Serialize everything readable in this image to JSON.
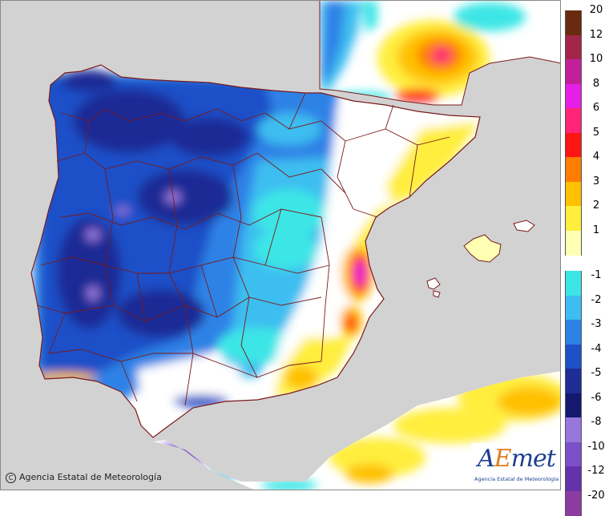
{
  "legend": {
    "levels": [
      {
        "label": "20",
        "color": "#6a2a10"
      },
      {
        "label": "12",
        "color": "#a3264a"
      },
      {
        "label": "10",
        "color": "#c2209a"
      },
      {
        "label": "8",
        "color": "#e61ee6"
      },
      {
        "label": "6",
        "color": "#ff2478"
      },
      {
        "label": "5",
        "color": "#ff1414"
      },
      {
        "label": "4",
        "color": "#ff7d00"
      },
      {
        "label": "3",
        "color": "#ffc000"
      },
      {
        "label": "2",
        "color": "#ffee3c"
      },
      {
        "label": "1",
        "color": "#ffffb4"
      },
      {
        "label": "-1",
        "color": "#3ce6e6"
      },
      {
        "label": "-2",
        "color": "#3cbef0"
      },
      {
        "label": "-3",
        "color": "#2d82e6"
      },
      {
        "label": "-4",
        "color": "#1e50c8"
      },
      {
        "label": "-5",
        "color": "#1e2c96"
      },
      {
        "label": "-6",
        "color": "#14186e"
      },
      {
        "label": "-8",
        "color": "#9678dc"
      },
      {
        "label": "-10",
        "color": "#7c50c8"
      },
      {
        "label": "-12",
        "color": "#6432aa"
      },
      {
        "label": "-20",
        "color": "#8c3ca0"
      }
    ]
  },
  "colors": {
    "sea": "#d2d2d2",
    "land_outside": "#fff8dc",
    "borders": "#7a1a1a"
  },
  "credit": {
    "copyright_symbol": "C",
    "text": "Agencia Estatal de Meteorología"
  },
  "logo": {
    "brand_a": "A",
    "brand_e": "E",
    "brand_rest": "met",
    "subtitle": "Agencia Estatal de Meteorología"
  }
}
